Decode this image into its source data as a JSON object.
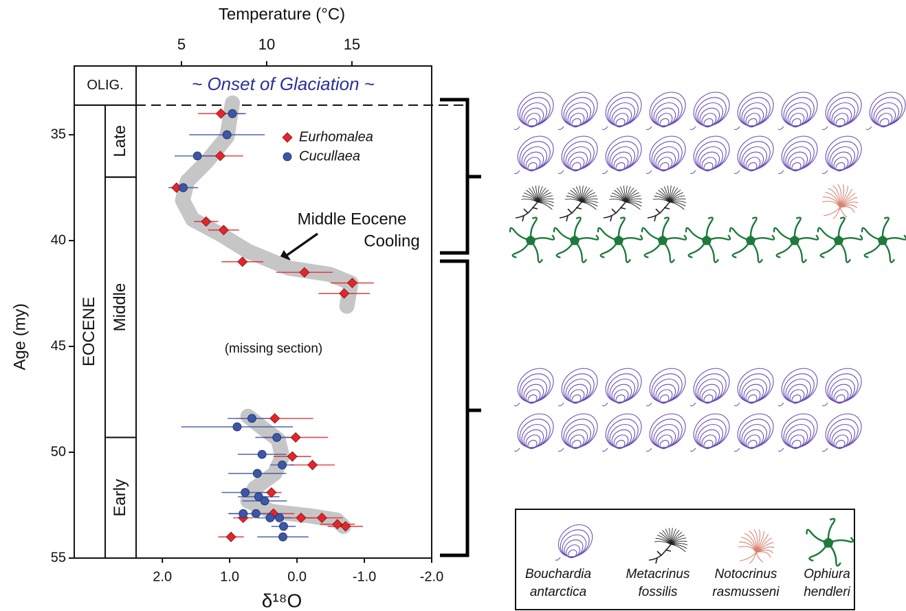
{
  "chart_data": {
    "type": "scatter",
    "x2_label": "Temperature (°C)",
    "x_label": "δ¹⁸O",
    "y_label": "Age (my)",
    "xlim": [
      2.39,
      -2.0
    ],
    "xticks": [
      {
        "value": 2,
        "label": "2.0"
      },
      {
        "value": 1,
        "label": "1.0"
      },
      {
        "value": 0,
        "label": "0.0"
      },
      {
        "value": -1,
        "label": "-1.0"
      },
      {
        "value": -2,
        "label": "-2.0"
      }
    ],
    "x2lim": [
      2.34,
      19.68
    ],
    "x2ticks": [
      5,
      10,
      15
    ],
    "ylim": [
      31.75,
      55
    ],
    "yticks": [
      35,
      40,
      45,
      50,
      55
    ],
    "epochs": [
      {
        "label": "OLIG.",
        "from": 31.75,
        "to": 33.6
      },
      {
        "label": "EOCENE",
        "from": 33.6,
        "to": 55
      }
    ],
    "subepochs": [
      {
        "label": "Late",
        "from": 33.6,
        "to": 37.0
      },
      {
        "label": "Middle",
        "from": 37.0,
        "to": 49.3
      },
      {
        "label": "Early",
        "from": 49.3,
        "to": 55
      }
    ],
    "onset": {
      "text": "~ Onset of Glaciation ~",
      "age": 33.6
    },
    "cooling_note": [
      "Middle Eocene",
      "Cooling"
    ],
    "missing_note": "(missing section)",
    "trend": {
      "color": "#c6c6c6",
      "x": [
        0.96,
        1.04,
        1.35,
        1.63,
        1.7,
        1.55,
        1.14,
        0.73,
        0.12,
        -0.49,
        -0.8,
        -0.74,
        null,
        0.73,
        0.53,
        0.28,
        0.22,
        0.33,
        0.63,
        0.73,
        0.38,
        -0.18,
        -0.59,
        -0.69
      ],
      "y": [
        33.5,
        35.1,
        36.3,
        37.2,
        38.1,
        39.0,
        39.7,
        40.5,
        41.3,
        41.6,
        42.0,
        43.1,
        null,
        48.3,
        48.8,
        49.4,
        50.2,
        51.0,
        51.7,
        52.3,
        52.8,
        53.0,
        53.2,
        53.5
      ]
    },
    "series": [
      {
        "name": "Eurhomalea",
        "color": "#e3262b",
        "marker": "diamond",
        "x": [
          1.13,
          1.14,
          1.79,
          1.35,
          1.09,
          0.81,
          -0.11,
          -0.82,
          -0.7,
          0.33,
          0.02,
          0.07,
          -0.23,
          0.38,
          0.8,
          0.35,
          -0.06,
          -0.37,
          -0.6,
          -0.72,
          0.98
        ],
        "y": [
          34.0,
          36.0,
          37.5,
          39.1,
          39.5,
          41.0,
          41.5,
          42.0,
          42.5,
          48.4,
          49.3,
          50.2,
          50.6,
          51.9,
          53.1,
          52.9,
          53.1,
          53.1,
          53.4,
          53.5,
          54.0
        ],
        "xerr": [
          0.34,
          0.34,
          0.08,
          0.18,
          0.23,
          0.31,
          0.42,
          0.32,
          0.38,
          0.57,
          0.48,
          0.28,
          0.33,
          0.15,
          0.15,
          0.31,
          0.36,
          0.31,
          0.26,
          0.26,
          0.19
        ]
      },
      {
        "name": "Cucullaea",
        "color": "#3c57a8",
        "marker": "circle",
        "x": [
          0.96,
          1.04,
          1.48,
          1.69,
          0.67,
          0.89,
          0.3,
          0.52,
          0.22,
          0.59,
          0.77,
          0.57,
          0.48,
          0.8,
          0.61,
          0.4,
          0.26,
          0.2,
          0.21
        ],
        "y": [
          34.0,
          35.0,
          36.0,
          37.5,
          48.4,
          48.8,
          49.3,
          50.1,
          50.6,
          51.0,
          51.9,
          52.1,
          52.3,
          52.9,
          52.9,
          53.1,
          53.1,
          53.5,
          54.0
        ],
        "xerr": [
          0.2,
          0.56,
          0.34,
          0.22,
          0.36,
          0.83,
          0.32,
          0.36,
          0.18,
          0.43,
          0.35,
          0.31,
          0.33,
          0.22,
          0.4,
          0.19,
          0.18,
          0.18,
          0.38
        ]
      }
    ]
  },
  "species_legend": [
    {
      "genus": "Bouchardia",
      "epithet": "antarctica"
    },
    {
      "genus": "Metacrinus",
      "epithet": "fossilis"
    },
    {
      "genus": "Notocrinus",
      "epithet": "rasmusseni"
    },
    {
      "genus": "Ophiura",
      "epithet": "hendleri"
    }
  ]
}
